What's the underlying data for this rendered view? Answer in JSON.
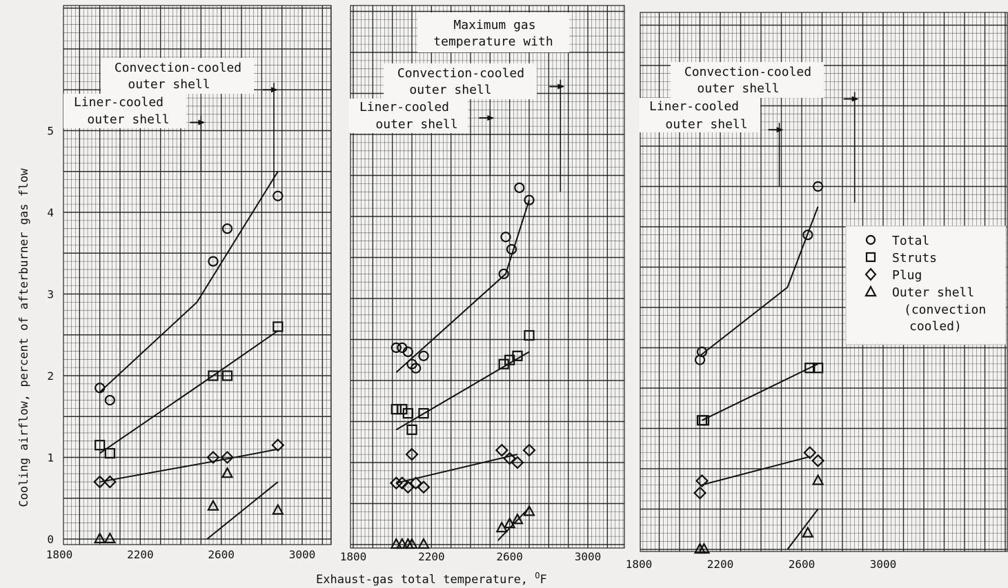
{
  "figure": {
    "ylabel": "Cooling airflow, percent of afterburner gas flow",
    "xlabel_main": "Exhaust-gas total temperature, ",
    "xlabel_unit_sup": "O",
    "xlabel_unit": "F"
  },
  "annotations": {
    "max_temp_line1": "Maximum gas",
    "max_temp_line2": "temperature with",
    "convection_line1": "Convection-cooled",
    "convection_line2": "outer shell",
    "liner_line1": "Liner-cooled",
    "liner_line2": "outer shell"
  },
  "legend": {
    "items": [
      {
        "marker": "circle",
        "label": "Total"
      },
      {
        "marker": "square",
        "label": "Struts"
      },
      {
        "marker": "diamond",
        "label": "Plug"
      },
      {
        "marker": "triangle",
        "label": "Outer shell"
      }
    ],
    "note_line1": "(convection",
    "note_line2": "cooled)"
  },
  "chart_data": [
    {
      "type": "scatter",
      "xlim": [
        1800,
        3000
      ],
      "ylim": [
        0,
        6
      ],
      "x_ticks": [
        1800,
        2200,
        2600,
        3000
      ],
      "y_ticks": [
        0,
        1,
        2,
        3,
        4,
        5
      ],
      "grid": true,
      "markers": {
        "liner_cooled_max_temp": 2500,
        "convection_cooled_max_temp": 2860
      },
      "series": [
        {
          "marker": "circle",
          "points": [
            [
              2000,
              1.85
            ],
            [
              2050,
              1.7
            ],
            [
              2560,
              3.4
            ],
            [
              2630,
              3.8
            ],
            [
              2880,
              4.2
            ]
          ],
          "fit": [
            [
              2000,
              1.8
            ],
            [
              2480,
              2.9
            ],
            [
              2880,
              4.5
            ]
          ]
        },
        {
          "marker": "square",
          "points": [
            [
              2000,
              1.15
            ],
            [
              2050,
              1.05
            ],
            [
              2560,
              2.0
            ],
            [
              2630,
              2.0
            ],
            [
              2880,
              2.6
            ]
          ],
          "fit": [
            [
              2000,
              1.05
            ],
            [
              2560,
              2.0
            ],
            [
              2880,
              2.55
            ]
          ]
        },
        {
          "marker": "diamond",
          "points": [
            [
              2000,
              0.7
            ],
            [
              2050,
              0.7
            ],
            [
              2560,
              1.0
            ],
            [
              2630,
              1.0
            ],
            [
              2880,
              1.15
            ]
          ],
          "fit": [
            [
              2000,
              0.7
            ],
            [
              2560,
              0.95
            ],
            [
              2880,
              1.1
            ]
          ]
        },
        {
          "marker": "triangle",
          "points": [
            [
              2000,
              0.0
            ],
            [
              2050,
              0.0
            ],
            [
              2560,
              0.4
            ],
            [
              2630,
              0.8
            ],
            [
              2880,
              0.35
            ]
          ],
          "fit": [
            [
              2530,
              0.0
            ],
            [
              2880,
              0.7
            ]
          ]
        }
      ]
    },
    {
      "type": "scatter",
      "xlim": [
        1800,
        3000
      ],
      "ylim": [
        0,
        6
      ],
      "x_ticks": [
        1800,
        2200,
        2600,
        3000
      ],
      "y_ticks": [
        0,
        1,
        2,
        3,
        4,
        5
      ],
      "grid": true,
      "markers": {
        "liner_cooled_max_temp": 2500,
        "convection_cooled_max_temp": 2860
      },
      "series": [
        {
          "marker": "circle",
          "points": [
            [
              2020,
              2.4
            ],
            [
              2050,
              2.4
            ],
            [
              2080,
              2.35
            ],
            [
              2100,
              2.2
            ],
            [
              2120,
              2.15
            ],
            [
              2160,
              2.3
            ],
            [
              2580,
              3.75
            ],
            [
              2570,
              3.3
            ],
            [
              2610,
              3.6
            ],
            [
              2650,
              4.35
            ],
            [
              2700,
              4.2
            ]
          ],
          "fit": [
            [
              2020,
              2.1
            ],
            [
              2580,
              3.3
            ],
            [
              2700,
              4.2
            ]
          ]
        },
        {
          "marker": "square",
          "points": [
            [
              2020,
              1.65
            ],
            [
              2050,
              1.65
            ],
            [
              2080,
              1.6
            ],
            [
              2100,
              1.4
            ],
            [
              2160,
              1.6
            ],
            [
              2570,
              2.2
            ],
            [
              2600,
              2.25
            ],
            [
              2640,
              2.3
            ],
            [
              2700,
              2.55
            ]
          ],
          "fit": [
            [
              2020,
              1.4
            ],
            [
              2700,
              2.35
            ]
          ]
        },
        {
          "marker": "diamond",
          "points": [
            [
              2020,
              0.75
            ],
            [
              2050,
              0.75
            ],
            [
              2080,
              0.7
            ],
            [
              2100,
              1.1
            ],
            [
              2120,
              0.75
            ],
            [
              2160,
              0.7
            ],
            [
              2560,
              1.15
            ],
            [
              2600,
              1.05
            ],
            [
              2640,
              1.0
            ],
            [
              2700,
              1.15
            ]
          ],
          "fit": [
            [
              2020,
              0.75
            ],
            [
              2640,
              1.1
            ]
          ]
        },
        {
          "marker": "triangle",
          "points": [
            [
              2020,
              0.0
            ],
            [
              2050,
              0.0
            ],
            [
              2080,
              0.0
            ],
            [
              2100,
              0.0
            ],
            [
              2160,
              0.0
            ],
            [
              2560,
              0.2
            ],
            [
              2600,
              0.25
            ],
            [
              2640,
              0.3
            ],
            [
              2700,
              0.4
            ]
          ],
          "fit": [
            [
              2540,
              0.05
            ],
            [
              2700,
              0.45
            ]
          ]
        }
      ]
    },
    {
      "type": "scatter",
      "xlim": [
        1800,
        3000
      ],
      "ylim": [
        0,
        6
      ],
      "x_ticks": [
        1800,
        2200,
        2600,
        3000
      ],
      "y_ticks": [
        0,
        1,
        2,
        3,
        4,
        5
      ],
      "grid": true,
      "markers": {
        "liner_cooled_max_temp": 2490,
        "convection_cooled_max_temp": 2860
      },
      "series": [
        {
          "marker": "circle",
          "points": [
            [
              2100,
              2.35
            ],
            [
              2110,
              2.45
            ],
            [
              2630,
              3.9
            ],
            [
              2680,
              4.5
            ]
          ],
          "fit": [
            [
              2100,
              2.4
            ],
            [
              2530,
              3.25
            ],
            [
              2680,
              4.25
            ]
          ]
        },
        {
          "marker": "square",
          "points": [
            [
              2110,
              1.6
            ],
            [
              2120,
              1.6
            ],
            [
              2640,
              2.25
            ],
            [
              2680,
              2.25
            ]
          ],
          "fit": [
            [
              2110,
              1.6
            ],
            [
              2680,
              2.3
            ]
          ]
        },
        {
          "marker": "diamond",
          "points": [
            [
              2100,
              0.7
            ],
            [
              2110,
              0.85
            ],
            [
              2640,
              1.2
            ],
            [
              2680,
              1.1
            ]
          ],
          "fit": [
            [
              2110,
              0.8
            ],
            [
              2640,
              1.15
            ]
          ]
        },
        {
          "marker": "triangle",
          "points": [
            [
              2100,
              0.0
            ],
            [
              2120,
              0.0
            ],
            [
              2630,
              0.2
            ],
            [
              2680,
              0.85
            ]
          ],
          "fit": [
            [
              2530,
              0.0
            ],
            [
              2680,
              0.5
            ]
          ]
        }
      ]
    }
  ]
}
